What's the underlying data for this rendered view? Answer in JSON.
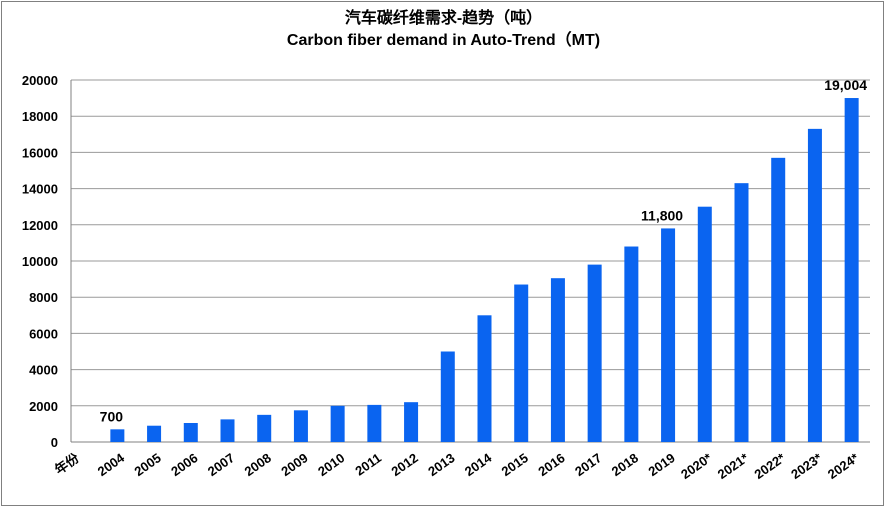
{
  "chart_data": {
    "type": "bar",
    "title": "汽车碳纤维需求-趋势（吨）",
    "subtitle": "Carbon fiber demand in Auto-Trend（MT)",
    "xlabel": "年份",
    "ylabel": "",
    "ylim": [
      0,
      20000
    ],
    "yticks": [
      "0",
      "2000",
      "4000",
      "6000",
      "8000",
      "10000",
      "12000",
      "14000",
      "16000",
      "18000",
      "20000"
    ],
    "grid": true,
    "legend": "none",
    "bar_color": "#0A64F0",
    "categories": [
      "2004",
      "2005",
      "2006",
      "2007",
      "2008",
      "2009",
      "2010",
      "2011",
      "2012",
      "2013",
      "2014",
      "2015",
      "2016",
      "2017",
      "2018",
      "2019",
      "2020*",
      "2021*",
      "2022*",
      "2023*",
      "2024*"
    ],
    "values": [
      700,
      900,
      1050,
      1250,
      1500,
      1750,
      2000,
      2050,
      2200,
      5000,
      7000,
      8700,
      9050,
      9800,
      10800,
      11800,
      13000,
      14300,
      15700,
      17300,
      19004
    ],
    "data_labels": [
      {
        "index": 0,
        "text": "700"
      },
      {
        "index": 15,
        "text": "11,800"
      },
      {
        "index": 20,
        "text": "19,004"
      }
    ]
  }
}
